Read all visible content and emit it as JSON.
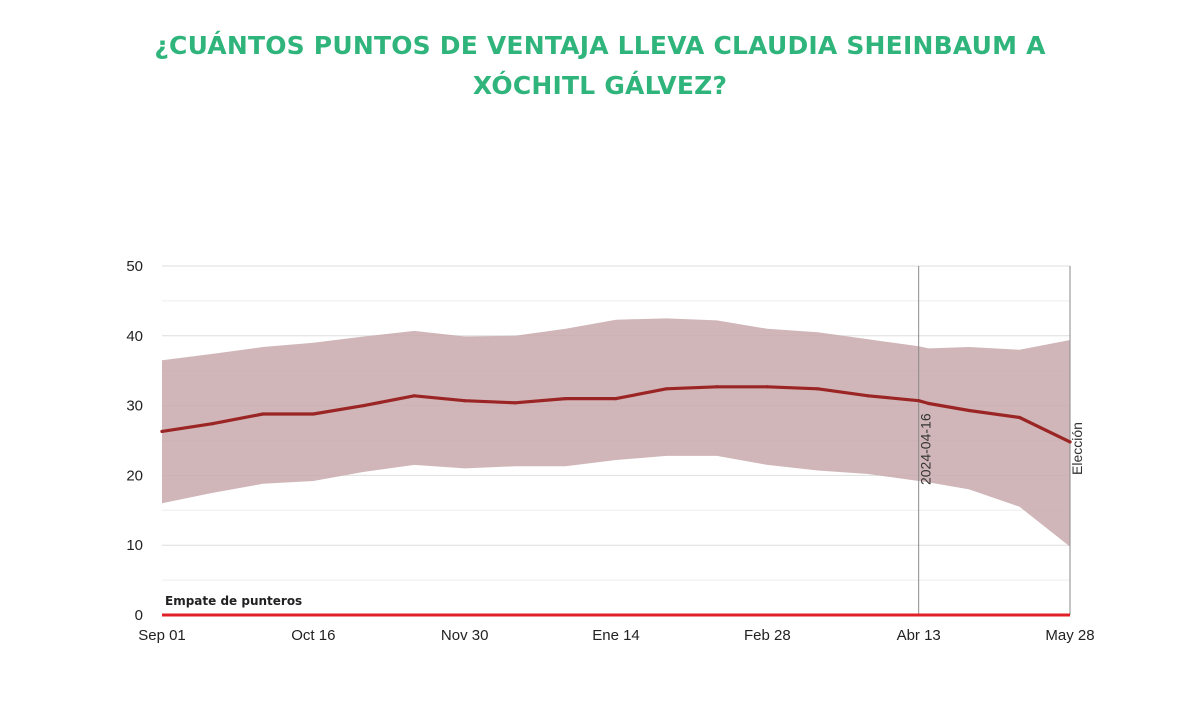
{
  "title": {
    "line1": "¿CUÁNTOS PUNTOS DE VENTAJA LLEVA CLAUDIA SHEINBAUM A",
    "line2": "XÓCHITL GÁLVEZ?"
  },
  "colors": {
    "title": "#2fb47c",
    "band": "#c8a9ab",
    "line": "#9b2525",
    "tie_line": "#e01f26"
  },
  "chart_data": {
    "type": "area",
    "x_ticks": [
      "Sep 01",
      "Oct 16",
      "Nov 30",
      "Ene 14",
      "Feb 28",
      "Abr 13",
      "May 28"
    ],
    "y_ticks": [
      "0",
      "10",
      "20",
      "30",
      "40",
      "50"
    ],
    "ylim": [
      0,
      50
    ],
    "grid": true,
    "x_days": [
      0,
      15,
      30,
      45,
      60,
      75,
      90,
      105,
      120,
      135,
      150,
      165,
      180,
      195,
      210,
      225,
      228,
      240,
      255,
      270
    ],
    "series": [
      {
        "role": "estimate",
        "values": [
          26.3,
          27.4,
          28.8,
          28.8,
          30.0,
          31.4,
          30.7,
          30.4,
          31.0,
          31.0,
          32.4,
          32.7,
          32.7,
          32.4,
          31.4,
          30.7,
          30.3,
          29.3,
          28.3,
          24.8
        ]
      },
      {
        "role": "upper",
        "values": [
          36.5,
          37.4,
          38.4,
          39.0,
          39.9,
          40.7,
          39.9,
          40.0,
          41.0,
          42.3,
          42.5,
          42.2,
          41.0,
          40.5,
          39.5,
          38.5,
          38.2,
          38.4,
          38.0,
          39.4
        ]
      },
      {
        "role": "lower",
        "values": [
          16.0,
          17.5,
          18.8,
          19.2,
          20.5,
          21.5,
          21.0,
          21.3,
          21.3,
          22.2,
          22.8,
          22.8,
          21.5,
          20.7,
          20.2,
          19.2,
          19.0,
          18.0,
          15.5,
          9.8
        ]
      }
    ],
    "vlines": [
      {
        "day": 225,
        "label": "2024-04-16"
      },
      {
        "day": 270,
        "label": "Elección"
      }
    ],
    "hline": {
      "y": 0,
      "label": "Empate de punteros"
    }
  }
}
